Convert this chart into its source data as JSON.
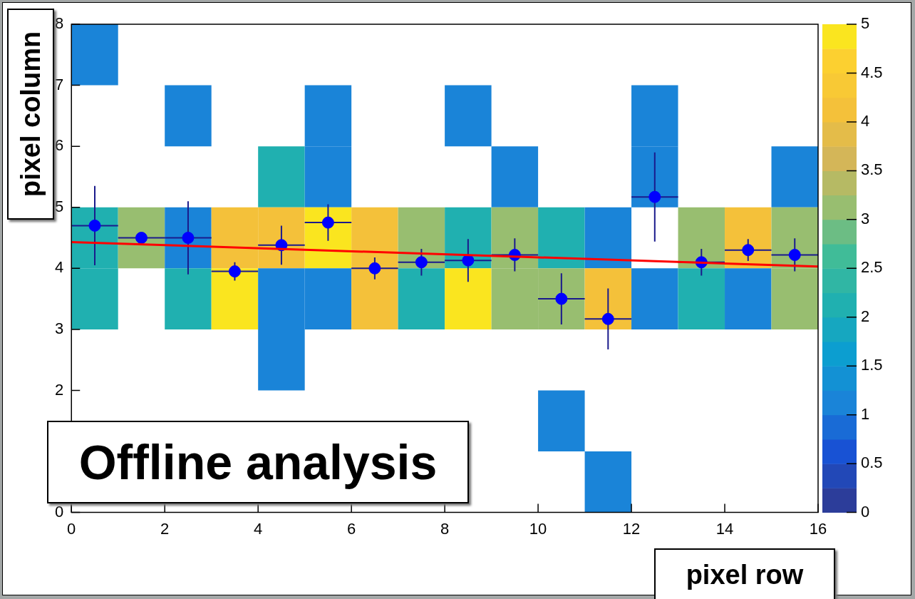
{
  "chart_data": {
    "type": "heatmap",
    "xlabel": "pixel row",
    "ylabel": "pixel column",
    "annotations": [
      "Offline analysis"
    ],
    "cells": [
      [
        1,
        null,
        null,
        null,
        null,
        null,
        null,
        null,
        null,
        null,
        null,
        null,
        null,
        null,
        null,
        null
      ],
      [
        null,
        null,
        1,
        null,
        null,
        1,
        null,
        null,
        1,
        null,
        null,
        null,
        1,
        null,
        null,
        null
      ],
      [
        null,
        null,
        null,
        null,
        2,
        1,
        null,
        null,
        null,
        1,
        null,
        null,
        1,
        null,
        null,
        1
      ],
      [
        2,
        3,
        1,
        4,
        4,
        5,
        4,
        3,
        2,
        3,
        2,
        1,
        null,
        3,
        4,
        3
      ],
      [
        2,
        null,
        2,
        5,
        1,
        1,
        4,
        2,
        5,
        3,
        3,
        4,
        1,
        2,
        1,
        3
      ],
      [
        null,
        null,
        null,
        null,
        1,
        null,
        null,
        null,
        null,
        null,
        null,
        null,
        null,
        null,
        null,
        null
      ],
      [
        null,
        null,
        null,
        null,
        null,
        null,
        null,
        null,
        null,
        null,
        1,
        null,
        null,
        null,
        null,
        null
      ],
      [
        null,
        null,
        null,
        null,
        null,
        null,
        null,
        null,
        null,
        null,
        null,
        1,
        null,
        null,
        null,
        null
      ]
    ],
    "clim": [
      0,
      5
    ],
    "cticks": [
      0,
      0.5,
      1,
      1.5,
      2,
      2.5,
      3,
      3.5,
      4,
      4.5,
      5
    ],
    "xlim": [
      0,
      16
    ],
    "xticks": [
      0,
      2,
      4,
      6,
      8,
      10,
      12,
      14,
      16
    ],
    "ylim": [
      0,
      8
    ],
    "yticks": [
      0,
      {
        "value": 1,
        "label": null
      },
      2,
      3,
      4,
      5,
      6,
      7,
      8
    ],
    "series": [
      {
        "type": "scatter",
        "marker": "circle",
        "color": "#0000ff",
        "x": [
          0.5,
          1.5,
          2.5,
          3.5,
          4.5,
          5.5,
          6.5,
          7.5,
          8.5,
          9.5,
          10.5,
          11.5,
          12.5,
          13.5,
          14.5,
          15.5
        ],
        "values": [
          4.7,
          4.5,
          4.5,
          3.95,
          4.38,
          4.75,
          4.0,
          4.1,
          4.13,
          4.22,
          3.5,
          3.17,
          5.17,
          4.1,
          4.3,
          4.22
        ],
        "errors": [
          0.65,
          0,
          0.6,
          0.15,
          0.32,
          0.3,
          0.18,
          0.22,
          0.35,
          0.27,
          0.42,
          0.5,
          0.73,
          0.22,
          0.18,
          0.27
        ],
        "xerrors": [
          0.5,
          0.5,
          0.5,
          0.5,
          0.5,
          0.5,
          0.5,
          0.5,
          0.5,
          0.5,
          0.5,
          0.5,
          0.5,
          0.5,
          0.5,
          0.5
        ]
      },
      {
        "type": "line",
        "color": "#ff0000",
        "x": [
          0,
          16
        ],
        "values": [
          4.43,
          4.03
        ]
      }
    ]
  }
}
